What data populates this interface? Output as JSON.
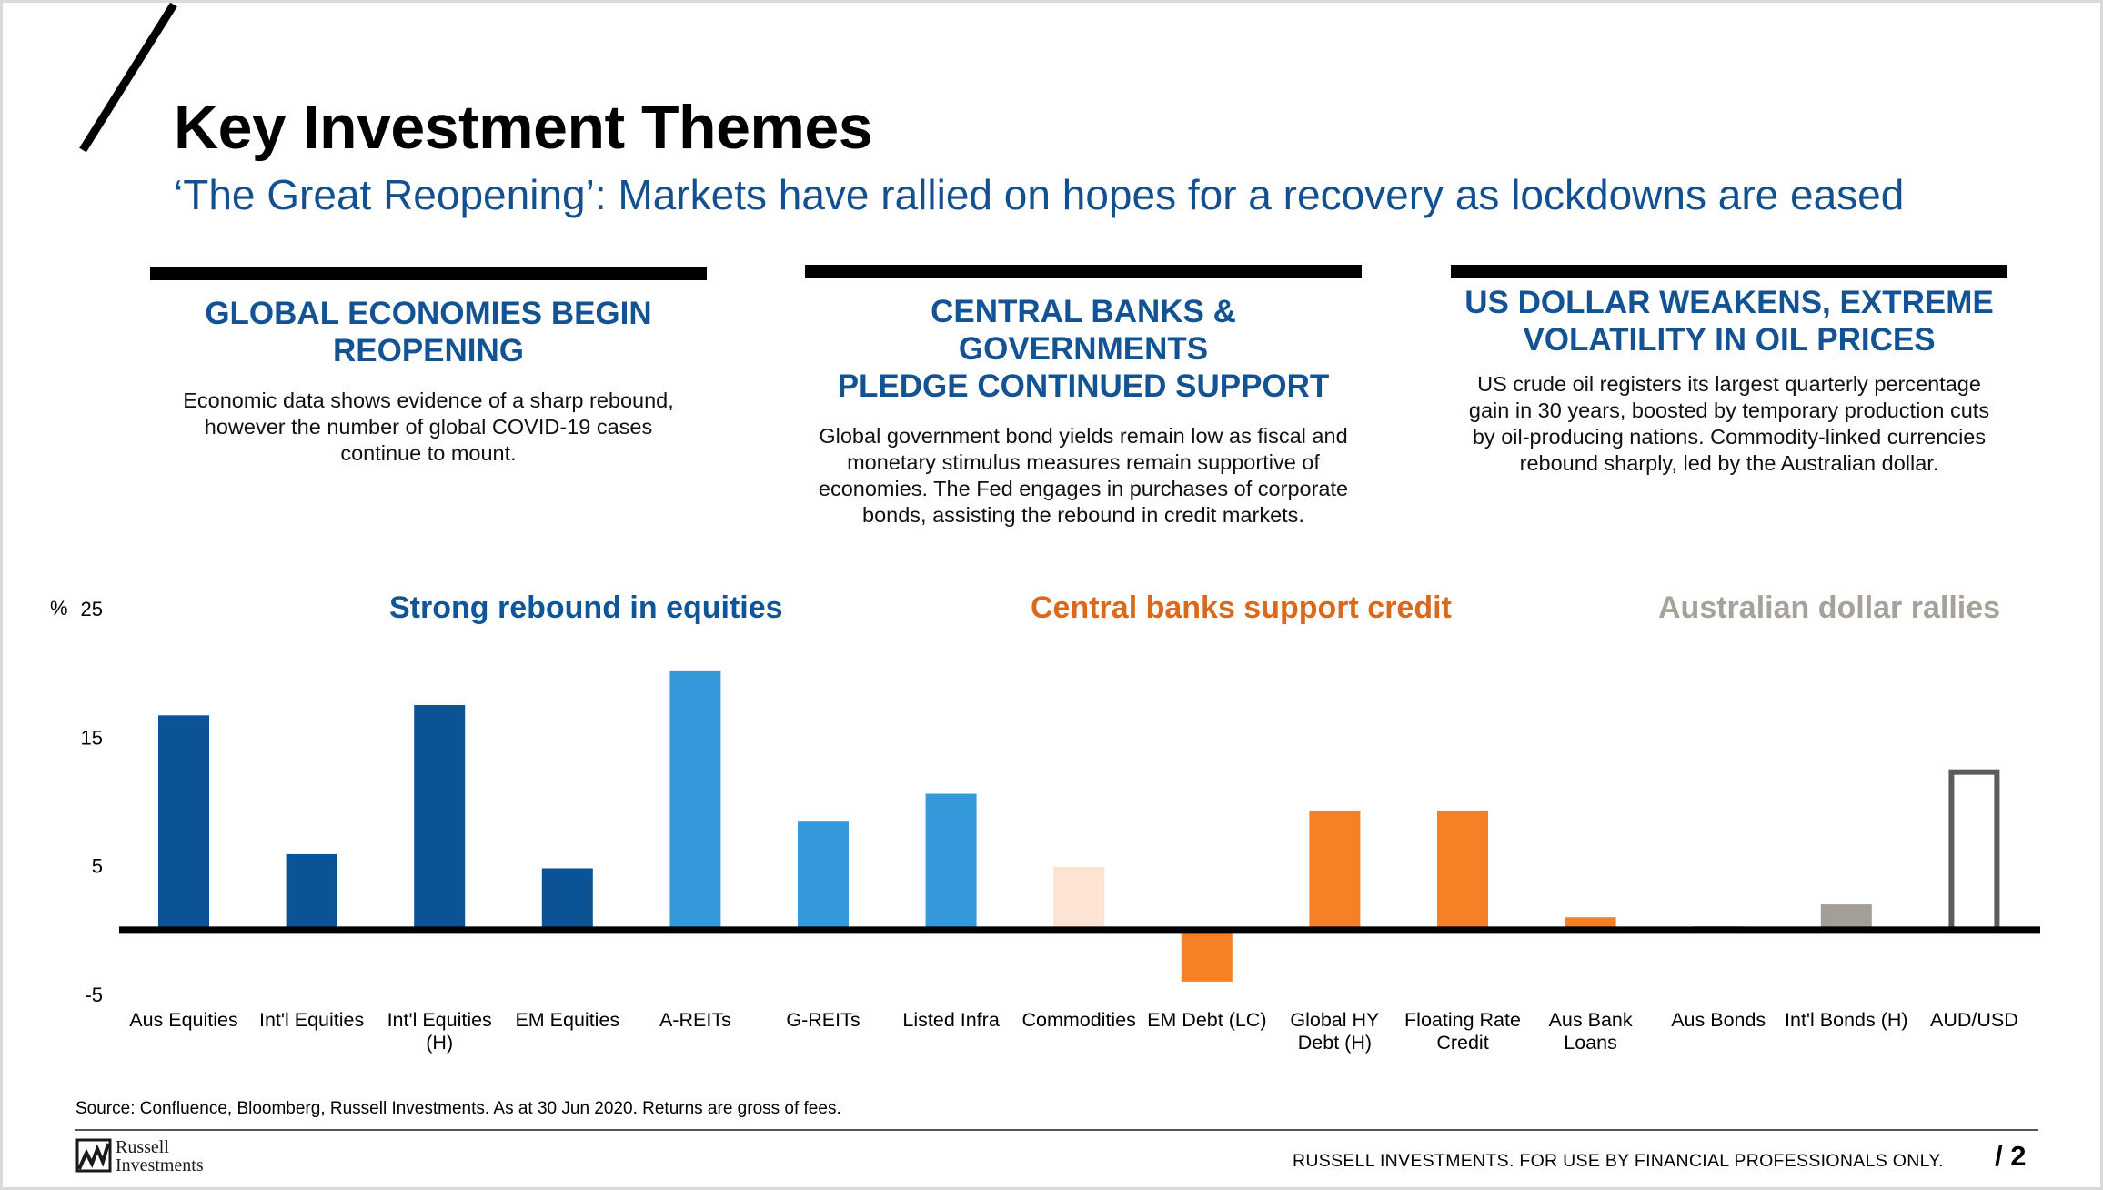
{
  "header": {
    "title": "Key Investment Themes",
    "subtitle": "‘The Great Reopening’: Markets have rallied on hopes for a recovery as lockdowns are eased"
  },
  "themes": [
    {
      "heading_line1": "GLOBAL ECONOMIES BEGIN",
      "heading_line2": "REOPENING",
      "body": "Economic data shows evidence of a sharp rebound, however the number of global COVID-19 cases continue to mount."
    },
    {
      "heading_line1": "CENTRAL BANKS & GOVERNMENTS",
      "heading_line2": "PLEDGE CONTINUED SUPPORT",
      "body": "Global government bond yields remain low as fiscal and monetary stimulus measures remain supportive of economies. The Fed engages in purchases of corporate bonds, assisting the rebound in credit markets."
    },
    {
      "heading_line1": "US DOLLAR WEAKENS, EXTREME",
      "heading_line2": "VOLATILITY IN OIL PRICES",
      "body": "US crude oil registers its largest quarterly percentage gain in 30 years, boosted by temporary production cuts by oil-producing nations. Commodity-linked currencies rebound sharply, led by the Australian dollar."
    }
  ],
  "chart_data": {
    "type": "bar",
    "group_titles": [
      {
        "text": "Strong rebound in equities",
        "color": "#0f5597"
      },
      {
        "text": "Central banks support credit",
        "color": "#d9691c"
      },
      {
        "text": "Australian dollar rallies",
        "color": "#a6a19b"
      }
    ],
    "ylabel": "%",
    "ylim": [
      -5,
      25
    ],
    "yticks": [
      -5,
      5,
      15,
      25
    ],
    "categories": [
      {
        "line1": "Aus Equities",
        "line2": ""
      },
      {
        "line1": "Int'l Equities",
        "line2": ""
      },
      {
        "line1": "Int'l Equities",
        "line2": "(H)"
      },
      {
        "line1": "EM Equities",
        "line2": ""
      },
      {
        "line1": "A-REITs",
        "line2": ""
      },
      {
        "line1": "G-REITs",
        "line2": ""
      },
      {
        "line1": "Listed Infra",
        "line2": ""
      },
      {
        "line1": "Commodities",
        "line2": ""
      },
      {
        "line1": "EM Debt (LC)",
        "line2": ""
      },
      {
        "line1": "Global HY",
        "line2": "Debt (H)"
      },
      {
        "line1": "Floating Rate",
        "line2": "Credit"
      },
      {
        "line1": "Aus Bank",
        "line2": "Loans"
      },
      {
        "line1": "Aus Bonds",
        "line2": ""
      },
      {
        "line1": "Int'l Bonds (H)",
        "line2": ""
      },
      {
        "line1": "AUD/USD",
        "line2": ""
      }
    ],
    "values": [
      16.7,
      5.9,
      17.5,
      4.8,
      20.2,
      8.5,
      10.6,
      4.9,
      -4.0,
      9.3,
      9.3,
      1.0,
      0.3,
      2.0,
      12.5
    ],
    "colors": [
      "#0a5495",
      "#0a5495",
      "#0a5495",
      "#0a5495",
      "#3399db",
      "#3399db",
      "#3399db",
      "#fde3d3",
      "#f58025",
      "#f58025",
      "#f58025",
      "#f58025",
      "#a39e98",
      "#a39e98",
      "outline-#5c5c5c"
    ],
    "legend": "none",
    "grid": false
  },
  "footer": {
    "source": "Source: Confluence, Bloomberg, Russell Investments. As at 30 Jun 2020. Returns are gross of fees.",
    "logo_line1": "Russell",
    "logo_line2": "Investments",
    "disclaimer": "RUSSELL INVESTMENTS.  FOR USE BY FINANCIAL PROFESSIONALS ONLY.",
    "page_number": "/ 2"
  }
}
